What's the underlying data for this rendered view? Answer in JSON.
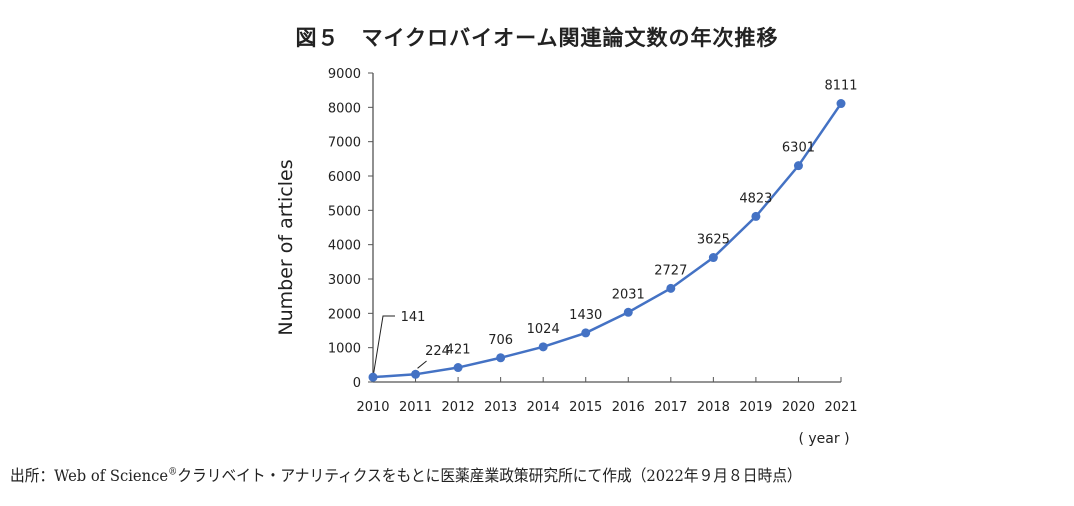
{
  "title": "図５　マイクロバイオーム関連論文数の年次推移",
  "source": {
    "prefix": "出所：Web of Science",
    "mark": "®",
    "suffix": "クラリベイト・アナリティクスをもとに医薬産業政策研究所にて作成（2022年９月８日時点）"
  },
  "chart_data": {
    "type": "line",
    "title": "図５　マイクロバイオーム関連論文数の年次推移",
    "xlabel": "( year )",
    "ylabel": "Number of articles",
    "categories": [
      "2010",
      "2011",
      "2012",
      "2013",
      "2014",
      "2015",
      "2016",
      "2017",
      "2018",
      "2019",
      "2020",
      "2021"
    ],
    "values": [
      141,
      224,
      421,
      706,
      1024,
      1430,
      2031,
      2727,
      3625,
      4823,
      6301,
      8111
    ],
    "data_labels": [
      "141",
      "224",
      "421",
      "706",
      "1024",
      "1430",
      "2031",
      "2727",
      "3625",
      "4823",
      "6301",
      "8111"
    ],
    "ylim": [
      0,
      9000
    ],
    "yticks": [
      "0",
      "1000",
      "2000",
      "3000",
      "4000",
      "5000",
      "6000",
      "7000",
      "8000",
      "9000"
    ],
    "grid": false,
    "color": "#4472C4"
  }
}
